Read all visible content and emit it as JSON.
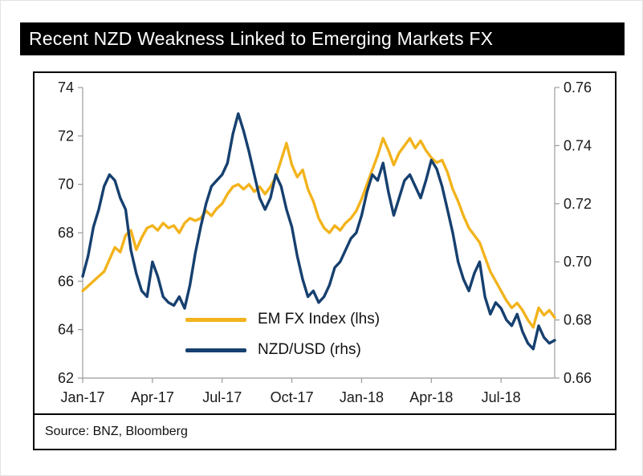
{
  "page": {
    "title": "Recent NZD Weakness Linked to Emerging Markets FX",
    "source": "Source: BNZ, Bloomberg"
  },
  "colors": {
    "title_bg": "#000000",
    "title_fg": "#ffffff",
    "em_fx": "#F2B31C",
    "nzd": "#16406F",
    "axis": "#9b9b9b",
    "tick_text": "#1a1a1a"
  },
  "chart_data": {
    "type": "line",
    "title": "Recent NZD Weakness Linked to Emerging Markets FX",
    "source": "Source: BNZ, Bloomberg",
    "x_sampling": "weekly from Jan-2017 to mid-Sep-2018",
    "x_tick_labels": [
      "Jan-17",
      "Apr-17",
      "Jul-17",
      "Oct-17",
      "Jan-18",
      "Apr-18",
      "Jul-18"
    ],
    "x_tick_weeks": [
      0,
      13,
      26,
      39,
      52,
      65,
      78
    ],
    "left_axis": {
      "ticks": [
        62,
        64,
        66,
        68,
        70,
        72,
        74
      ],
      "range": [
        62,
        74
      ]
    },
    "right_axis": {
      "ticks": [
        0.66,
        0.68,
        0.7,
        0.72,
        0.74,
        0.76
      ],
      "range": [
        0.66,
        0.76
      ],
      "decimals": 2
    },
    "grid": false,
    "legend_position": "inside-lower-left",
    "series": [
      {
        "name": "EM FX Index (lhs)",
        "axis": "left",
        "color": "#F2B31C",
        "values": [
          65.6,
          65.8,
          66.0,
          66.2,
          66.4,
          66.9,
          67.4,
          67.2,
          67.9,
          68.1,
          67.3,
          67.8,
          68.2,
          68.3,
          68.1,
          68.4,
          68.2,
          68.3,
          68.0,
          68.4,
          68.6,
          68.5,
          68.6,
          68.9,
          68.7,
          69.0,
          69.2,
          69.6,
          69.9,
          70.0,
          69.8,
          70.0,
          69.7,
          69.9,
          69.6,
          69.9,
          70.3,
          71.0,
          71.7,
          70.8,
          70.3,
          70.6,
          69.8,
          69.3,
          68.6,
          68.2,
          68.0,
          68.3,
          68.1,
          68.4,
          68.6,
          68.9,
          69.4,
          70.0,
          70.6,
          71.2,
          71.9,
          71.4,
          70.8,
          71.3,
          71.6,
          71.9,
          71.5,
          71.8,
          71.4,
          71.1,
          70.9,
          71.0,
          70.5,
          69.8,
          69.3,
          68.7,
          68.2,
          67.9,
          67.6,
          67.0,
          66.4,
          66.0,
          65.6,
          65.2,
          64.9,
          65.1,
          64.8,
          64.4,
          64.1,
          64.9,
          64.6,
          64.8,
          64.5
        ]
      },
      {
        "name": "NZD/USD (rhs)",
        "axis": "right",
        "color": "#16406F",
        "values": [
          0.695,
          0.702,
          0.712,
          0.718,
          0.726,
          0.73,
          0.728,
          0.722,
          0.718,
          0.704,
          0.696,
          0.69,
          0.688,
          0.7,
          0.695,
          0.688,
          0.686,
          0.685,
          0.688,
          0.684,
          0.692,
          0.703,
          0.712,
          0.72,
          0.726,
          0.728,
          0.73,
          0.734,
          0.744,
          0.751,
          0.745,
          0.738,
          0.73,
          0.722,
          0.718,
          0.722,
          0.73,
          0.726,
          0.718,
          0.712,
          0.702,
          0.694,
          0.688,
          0.69,
          0.686,
          0.688,
          0.692,
          0.698,
          0.7,
          0.704,
          0.708,
          0.71,
          0.716,
          0.724,
          0.73,
          0.728,
          0.734,
          0.724,
          0.716,
          0.722,
          0.728,
          0.73,
          0.726,
          0.722,
          0.728,
          0.735,
          0.732,
          0.726,
          0.718,
          0.71,
          0.7,
          0.694,
          0.69,
          0.696,
          0.7,
          0.688,
          0.682,
          0.686,
          0.684,
          0.68,
          0.678,
          0.682,
          0.676,
          0.672,
          0.67,
          0.678,
          0.674,
          0.672,
          0.673
        ]
      }
    ]
  }
}
